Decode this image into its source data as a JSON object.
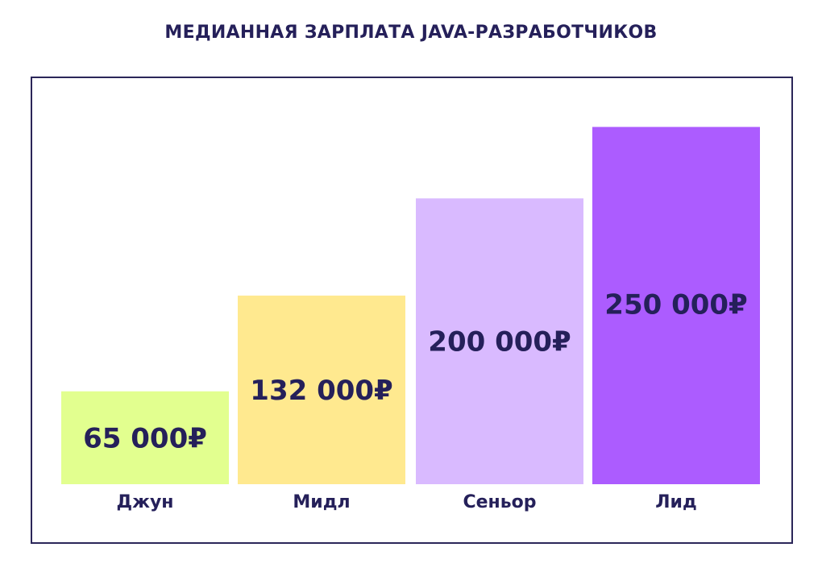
{
  "chart_data": {
    "type": "bar",
    "title": "МЕДИАННАЯ ЗАРПЛАТА JAVA-РАЗРАБОТЧИКОВ",
    "categories": [
      "Джун",
      "Мидл",
      "Сеньор",
      "Лид"
    ],
    "values": [
      65000,
      132000,
      200000,
      250000
    ],
    "value_labels": [
      "65 000₽",
      "132 000₽",
      "200 000₽",
      "250 000₽"
    ],
    "colors": [
      "#e2ff8f",
      "#ffe98f",
      "#d9baff",
      "#ac5cff"
    ],
    "ylim": [
      0,
      305000
    ],
    "grid": false,
    "legend": "none"
  }
}
